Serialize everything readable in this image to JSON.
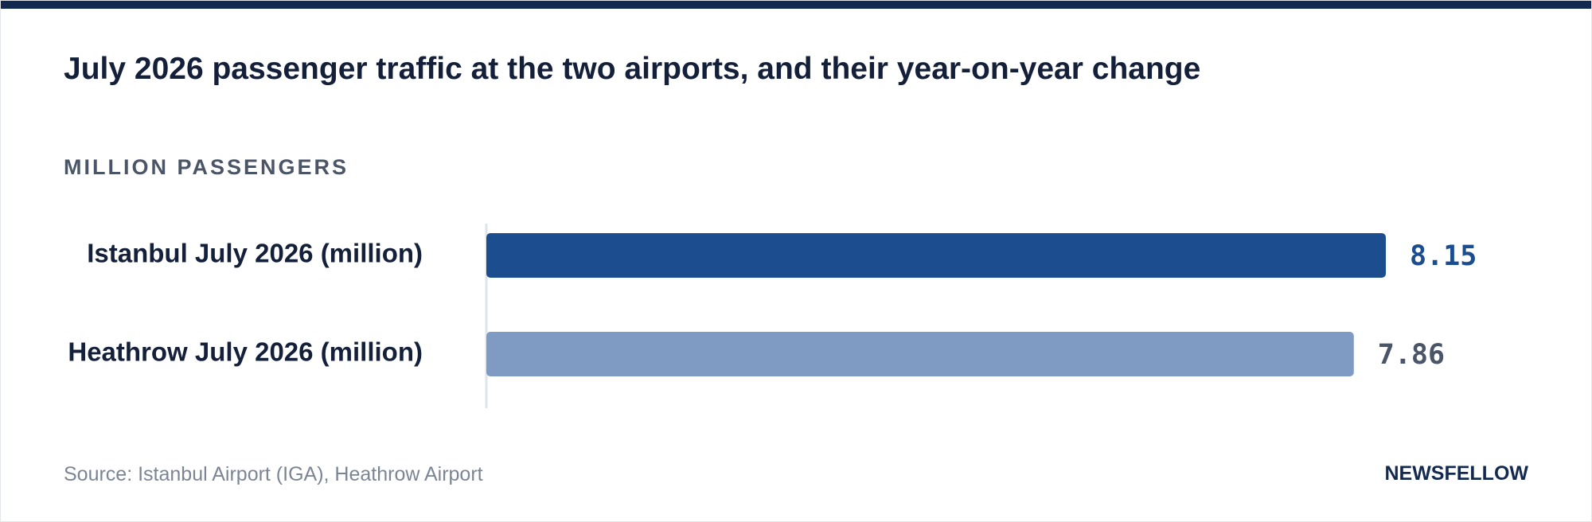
{
  "header": {
    "title": "July 2026 passenger traffic at the two airports, and their year-on-year change",
    "subtitle": "MILLION PASSENGERS"
  },
  "footer": {
    "source": "Source: Istanbul Airport (IGA), Heathrow Airport",
    "brand": "NEWSFELLOW"
  },
  "colors": {
    "top_rule": "#13294f",
    "bar_primary": "#1c4d8e",
    "bar_secondary": "#7f9bc4",
    "value_primary": "#1c4d8e",
    "value_secondary": "#4a5567",
    "axis": "#dfe4ea"
  },
  "chart_data": {
    "type": "bar",
    "orientation": "horizontal",
    "title": "July 2026 passenger traffic at the two airports, and their year-on-year change",
    "subtitle": "MILLION PASSENGERS",
    "categories": [
      "Istanbul July 2026 (million)",
      "Heathrow July 2026 (million)"
    ],
    "values": [
      8.15,
      7.86
    ],
    "value_labels": [
      "8.15",
      "7.86"
    ],
    "xlim": [
      0,
      8.15
    ],
    "grid": false,
    "legend": "none"
  }
}
